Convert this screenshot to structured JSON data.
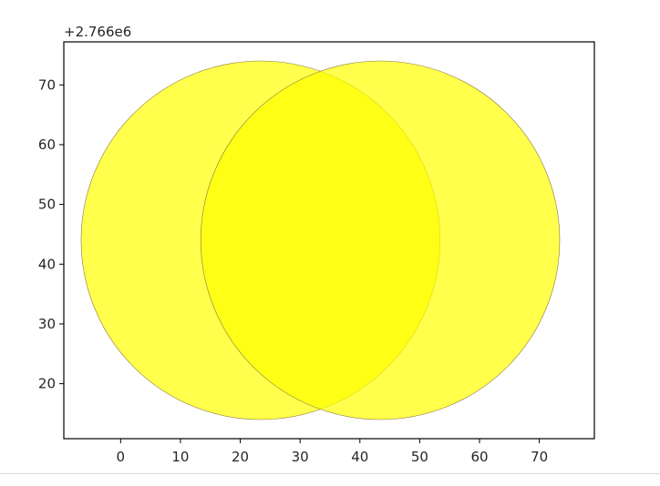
{
  "chart_data": {
    "type": "scatter",
    "title": "",
    "xlabel": "",
    "ylabel": "",
    "y_offset_text": "+2.766e6",
    "xlim": [
      -9.5,
      79.2
    ],
    "ylim": [
      10.8,
      77.2
    ],
    "x_ticks": [
      0,
      10,
      20,
      30,
      40,
      50,
      60,
      70
    ],
    "y_ticks": [
      20,
      30,
      40,
      50,
      60,
      70
    ],
    "x_tick_labels": [
      "0",
      "10",
      "20",
      "30",
      "40",
      "50",
      "60",
      "70"
    ],
    "y_tick_labels": [
      "20",
      "30",
      "40",
      "50",
      "60",
      "70"
    ],
    "grid": false,
    "series": [
      {
        "shape": "ellipse",
        "center": [
          23.4,
          44.0
        ],
        "radius_x": 30.0,
        "radius_y": 30.0,
        "fill": "#ffff00",
        "alpha": 0.7,
        "edge": "#8c7a40"
      },
      {
        "shape": "ellipse",
        "center": [
          43.4,
          44.0
        ],
        "radius_x": 30.0,
        "radius_y": 30.0,
        "fill": "#ffff00",
        "alpha": 0.7,
        "edge": "#8c7a40"
      }
    ]
  }
}
